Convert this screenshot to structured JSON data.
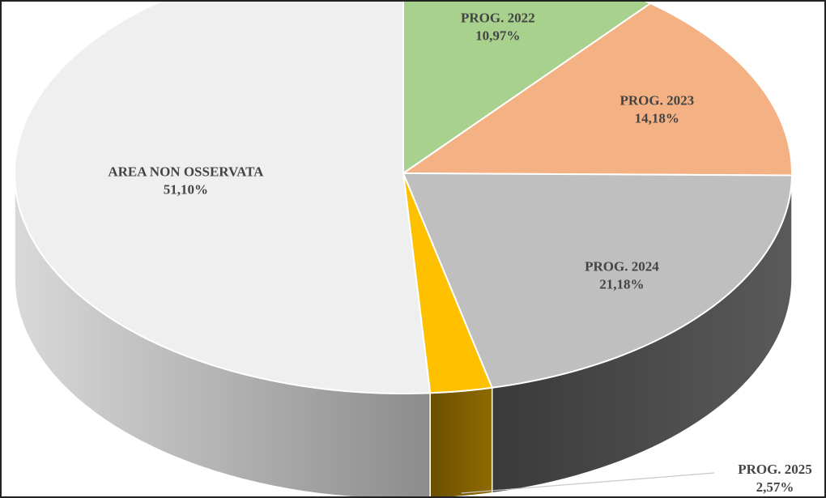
{
  "chart_data": {
    "type": "pie",
    "style": "3d",
    "title": "",
    "slices": [
      {
        "name": "PROG. 2022",
        "value": 10.97,
        "label_pct": "10,97%",
        "color": "#a9d18e"
      },
      {
        "name": "PROG. 2023",
        "value": 14.18,
        "label_pct": "14,18%",
        "color": "#f4b183"
      },
      {
        "name": "PROG. 2024",
        "value": 21.18,
        "label_pct": "21,18%",
        "color": "#bfbfbf"
      },
      {
        "name": "PROG. 2025",
        "value": 2.57,
        "label_pct": "2,57%",
        "color": "#ffc000"
      },
      {
        "name": "AREA NON OSSERVATA",
        "value": 51.1,
        "label_pct": "51,10%",
        "color": "#efefef"
      }
    ],
    "side_colors": {
      "PROG. 2024": "#4a4a4a",
      "PROG. 2025": "#7f6000",
      "AREA NON OSSERVATA": "#a6a6a6"
    }
  }
}
